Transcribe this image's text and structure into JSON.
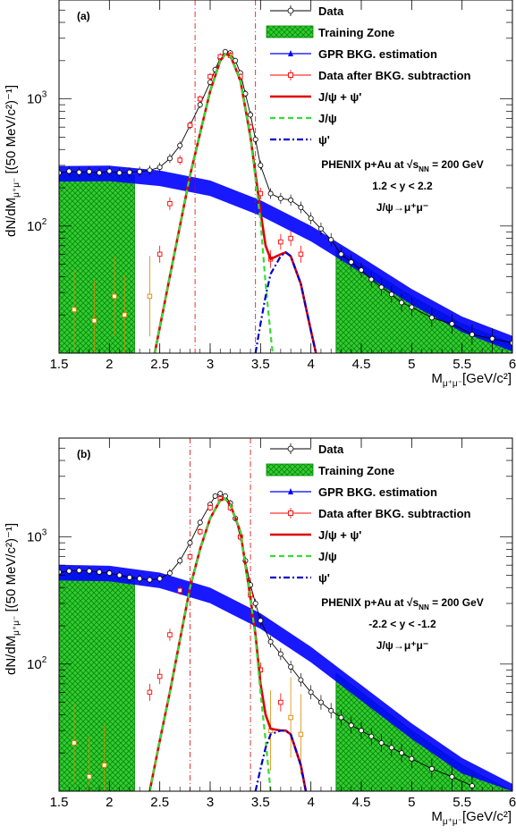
{
  "chart_data": [
    {
      "type": "scatter",
      "panel_label": "(a)",
      "xlabel_main": "M",
      "xlabel_sub": "μ⁺μ⁻",
      "xlabel_unit": "[GeV/c²]",
      "ylabel_main": "dN/dM",
      "ylabel_sub": "μ⁺μ⁻",
      "ylabel_unit": "[(50 MeV/c²)⁻¹]",
      "x_scale": "linear",
      "y_scale": "log",
      "xlim": [
        1.5,
        6
      ],
      "ylim": [
        10,
        6000
      ],
      "x_ticks": [
        "1.5",
        "2",
        "2.5",
        "3",
        "3.5",
        "4",
        "4.5",
        "5",
        "5.5",
        "6"
      ],
      "y_ticks": [
        {
          "base": "10",
          "exp": "3",
          "value": 1000
        },
        {
          "base": "10",
          "exp": "2",
          "value": 100
        }
      ],
      "legend": [
        "Data",
        "Training Zone",
        "GPR BKG. estimation",
        "Data after BKG. subtraction",
        "J/ψ + ψ'",
        "J/ψ",
        "ψ'"
      ],
      "legend_placement": "top-right",
      "annotation": {
        "line1_prefix": "PHENIX p+Au at ",
        "line1_s": "√s",
        "line1_sub": "NN",
        "line1_suffix": " = 200 GeV",
        "line2": "1.2 < y < 2.2",
        "line3": "J/ψ→μ⁺μ⁻"
      },
      "training_zones": [
        [
          1.5,
          2.25
        ],
        [
          4.25,
          6.0
        ]
      ],
      "vlines": [
        2.85,
        3.45
      ],
      "background": {
        "center": [
          [
            1.5,
            260
          ],
          [
            2.0,
            262
          ],
          [
            2.5,
            240
          ],
          [
            3.0,
            200
          ],
          [
            3.5,
            140
          ],
          [
            4.0,
            88
          ],
          [
            4.5,
            50
          ],
          [
            5.0,
            28
          ],
          [
            5.5,
            17
          ],
          [
            6.0,
            12
          ]
        ],
        "half_width_frac": 0.14
      },
      "data": {
        "x": [
          1.5,
          1.6,
          1.7,
          1.8,
          1.9,
          2.0,
          2.1,
          2.2,
          2.3,
          2.4,
          2.5,
          2.6,
          2.7,
          2.8,
          2.9,
          3.0,
          3.05,
          3.1,
          3.15,
          3.2,
          3.25,
          3.3,
          3.35,
          3.4,
          3.45,
          3.5,
          3.6,
          3.7,
          3.8,
          3.9,
          4.0,
          4.1,
          4.2,
          4.3,
          4.4,
          4.5,
          4.6,
          4.7,
          4.8,
          4.9,
          5.0,
          5.2,
          5.4,
          5.6,
          5.8,
          6.0
        ],
        "y": [
          262,
          270,
          265,
          268,
          262,
          270,
          262,
          265,
          268,
          275,
          290,
          340,
          430,
          620,
          900,
          1350,
          1700,
          2100,
          2350,
          2300,
          2000,
          1600,
          1100,
          750,
          480,
          300,
          180,
          165,
          160,
          140,
          115,
          95,
          78,
          60,
          52,
          45,
          38,
          33,
          29,
          25,
          23,
          19,
          17,
          14,
          13,
          12
        ]
      },
      "subtracted": {
        "x": [
          1.65,
          1.85,
          2.05,
          2.15,
          2.4,
          2.5,
          2.6,
          2.7,
          2.8,
          2.9,
          3.0,
          3.1,
          3.2,
          3.3,
          3.4,
          3.5,
          3.6,
          3.7,
          3.8,
          3.9
        ],
        "y": [
          22,
          18,
          28,
          20,
          28,
          60,
          150,
          330,
          620,
          1000,
          1500,
          2150,
          2200,
          1500,
          600,
          180,
          55,
          75,
          80,
          60
        ]
      },
      "jpsi_psi2s": {
        "x": [
          2.45,
          2.6,
          2.8,
          3.0,
          3.1,
          3.15,
          3.2,
          3.3,
          3.4,
          3.5,
          3.55,
          3.6,
          3.7,
          3.75,
          3.8,
          3.9,
          4.0,
          4.05
        ],
        "y": [
          10,
          40,
          250,
          1150,
          2000,
          2250,
          2200,
          1400,
          500,
          130,
          70,
          55,
          60,
          62,
          58,
          35,
          15,
          10
        ]
      },
      "jpsi": {
        "x": [
          2.45,
          2.6,
          2.8,
          3.0,
          3.1,
          3.15,
          3.2,
          3.3,
          3.4,
          3.5,
          3.55,
          3.6,
          3.62
        ],
        "y": [
          10,
          40,
          250,
          1150,
          2000,
          2250,
          2200,
          1400,
          500,
          110,
          35,
          14,
          10
        ]
      },
      "psi2s": {
        "x": [
          3.45,
          3.5,
          3.55,
          3.6,
          3.7,
          3.75,
          3.8,
          3.9,
          4.0,
          4.05
        ],
        "y": [
          10,
          17,
          28,
          42,
          58,
          62,
          58,
          35,
          15,
          10
        ]
      }
    },
    {
      "type": "scatter",
      "panel_label": "(b)",
      "xlabel_main": "M",
      "xlabel_sub": "μ⁺μ⁻",
      "xlabel_unit": "[GeV/c²]",
      "ylabel_main": "dN/dM",
      "ylabel_sub": "μ⁺μ⁻",
      "ylabel_unit": "[(50 MeV/c²)⁻¹]",
      "x_scale": "linear",
      "y_scale": "log",
      "xlim": [
        1.5,
        6
      ],
      "ylim": [
        10,
        6000
      ],
      "x_ticks": [
        "1.5",
        "2",
        "2.5",
        "3",
        "3.5",
        "4",
        "4.5",
        "5",
        "5.5",
        "6"
      ],
      "y_ticks": [
        {
          "base": "10",
          "exp": "3",
          "value": 1000
        },
        {
          "base": "10",
          "exp": "2",
          "value": 100
        }
      ],
      "legend": [
        "Data",
        "Training Zone",
        "GPR BKG. estimation",
        "Data after BKG. subtraction",
        "J/ψ + ψ'",
        "J/ψ",
        "ψ'"
      ],
      "legend_placement": "top-right",
      "annotation": {
        "line1_prefix": "PHENIX p+Au at ",
        "line1_s": "√s",
        "line1_sub": "NN",
        "line1_suffix": " = 200 GeV",
        "line2": "-2.2 < y < -1.2",
        "line3": "J/ψ→μ⁺μ⁻"
      },
      "training_zones": [
        [
          1.5,
          2.25
        ],
        [
          4.25,
          6.0
        ]
      ],
      "vlines": [
        2.8,
        3.4
      ],
      "background": {
        "center": [
          [
            1.5,
            530
          ],
          [
            2.0,
            520
          ],
          [
            2.5,
            460
          ],
          [
            3.0,
            350
          ],
          [
            3.5,
            220
          ],
          [
            4.0,
            120
          ],
          [
            4.5,
            60
          ],
          [
            5.0,
            30
          ],
          [
            5.5,
            16
          ],
          [
            6.0,
            10
          ]
        ],
        "half_width_frac": 0.14
      },
      "data": {
        "x": [
          1.5,
          1.6,
          1.7,
          1.8,
          1.9,
          2.0,
          2.1,
          2.2,
          2.3,
          2.4,
          2.5,
          2.6,
          2.7,
          2.8,
          2.9,
          3.0,
          3.05,
          3.1,
          3.15,
          3.2,
          3.25,
          3.3,
          3.35,
          3.4,
          3.45,
          3.5,
          3.6,
          3.7,
          3.8,
          3.9,
          4.0,
          4.1,
          4.2,
          4.3,
          4.4,
          4.5,
          4.6,
          4.7,
          4.8,
          4.9,
          5.0,
          5.2,
          5.4,
          5.6
        ],
        "y": [
          530,
          540,
          545,
          540,
          530,
          520,
          500,
          480,
          470,
          460,
          470,
          520,
          650,
          900,
          1300,
          1800,
          2100,
          2200,
          2100,
          1850,
          1400,
          1000,
          650,
          420,
          300,
          220,
          150,
          120,
          95,
          75,
          60,
          50,
          43,
          38,
          33,
          30,
          27,
          24,
          22,
          20,
          18,
          15,
          13,
          11
        ]
      },
      "subtracted": {
        "x": [
          1.65,
          1.8,
          1.95,
          2.4,
          2.5,
          2.6,
          2.7,
          2.8,
          2.9,
          3.0,
          3.1,
          3.2,
          3.3,
          3.4,
          3.5,
          3.6,
          3.7,
          3.8,
          3.9
        ],
        "y": [
          24,
          13,
          16,
          60,
          80,
          170,
          380,
          700,
          1100,
          1700,
          2000,
          1700,
          1000,
          350,
          90,
          30,
          50,
          38,
          28
        ]
      },
      "jpsi_psi2s": {
        "x": [
          2.4,
          2.5,
          2.6,
          2.8,
          2.9,
          3.0,
          3.1,
          3.15,
          3.2,
          3.3,
          3.4,
          3.45,
          3.5,
          3.55,
          3.6,
          3.7,
          3.75,
          3.8,
          3.9,
          3.95
        ],
        "y": [
          10,
          25,
          60,
          400,
          800,
          1400,
          1950,
          2000,
          1800,
          1100,
          330,
          170,
          70,
          40,
          31,
          30,
          30,
          28,
          16,
          10
        ]
      },
      "jpsi": {
        "x": [
          2.4,
          2.5,
          2.6,
          2.8,
          2.9,
          3.0,
          3.1,
          3.15,
          3.2,
          3.3,
          3.4,
          3.45,
          3.5,
          3.55,
          3.6
        ],
        "y": [
          10,
          25,
          60,
          400,
          800,
          1400,
          1950,
          2000,
          1800,
          1100,
          330,
          160,
          60,
          25,
          10
        ]
      },
      "psi2s": {
        "x": [
          3.45,
          3.5,
          3.55,
          3.6,
          3.7,
          3.75,
          3.8,
          3.9,
          3.95
        ],
        "y": [
          10,
          15,
          22,
          28,
          30,
          30,
          28,
          16,
          10
        ]
      }
    }
  ],
  "colors": {
    "data": "#000000",
    "training_fill": "#33cc33",
    "training_edge": "#008800",
    "gpr": "#0000ff",
    "subtracted": "#ff0000",
    "sum": "#dd0000",
    "jpsi": "#33dd33",
    "psi2s": "#0000cc",
    "vline": "#dd0000",
    "orange": "#dd8800"
  }
}
